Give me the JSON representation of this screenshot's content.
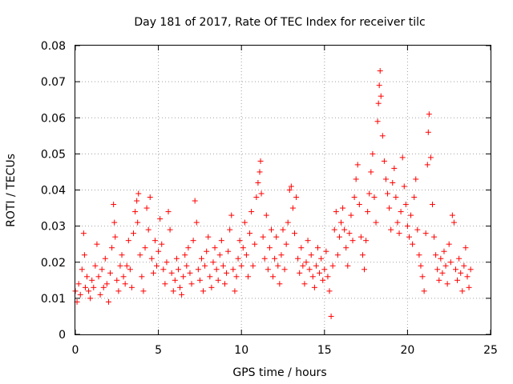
{
  "chart_data": {
    "type": "scatter",
    "title": "Day 181 of 2017, Rate Of TEC Index for receiver tilc",
    "xlabel": "GPS time / hours",
    "ylabel": "ROTI / TECUs",
    "xlim": [
      0,
      25
    ],
    "ylim": [
      0,
      0.08
    ],
    "x_ticks": [
      "0",
      "5",
      "10",
      "15",
      "20",
      "25"
    ],
    "y_ticks": [
      "0",
      "0.01",
      "0.02",
      "0.03",
      "0.04",
      "0.05",
      "0.06",
      "0.07",
      "0.08"
    ],
    "x_tick_values": [
      0,
      5,
      10,
      15,
      20,
      25
    ],
    "y_tick_values": [
      0,
      0.01,
      0.02,
      0.03,
      0.04,
      0.05,
      0.06,
      0.07,
      0.08
    ],
    "grid": true,
    "marker": "+",
    "color": "#ff0000",
    "series": [
      {
        "name": "ROTI",
        "points": [
          [
            0.0,
            0.012
          ],
          [
            0.1,
            0.009
          ],
          [
            0.2,
            0.014
          ],
          [
            0.3,
            0.011
          ],
          [
            0.4,
            0.018
          ],
          [
            0.5,
            0.028
          ],
          [
            0.55,
            0.022
          ],
          [
            0.6,
            0.013
          ],
          [
            0.7,
            0.016
          ],
          [
            0.8,
            0.012
          ],
          [
            0.9,
            0.01
          ],
          [
            1.0,
            0.015
          ],
          [
            1.1,
            0.013
          ],
          [
            1.2,
            0.019
          ],
          [
            1.3,
            0.025
          ],
          [
            1.4,
            0.016
          ],
          [
            1.5,
            0.011
          ],
          [
            1.6,
            0.018
          ],
          [
            1.7,
            0.013
          ],
          [
            1.8,
            0.021
          ],
          [
            1.9,
            0.014
          ],
          [
            2.0,
            0.009
          ],
          [
            2.1,
            0.017
          ],
          [
            2.2,
            0.024
          ],
          [
            2.3,
            0.036
          ],
          [
            2.35,
            0.031
          ],
          [
            2.4,
            0.027
          ],
          [
            2.5,
            0.015
          ],
          [
            2.6,
            0.012
          ],
          [
            2.7,
            0.019
          ],
          [
            2.8,
            0.022
          ],
          [
            2.9,
            0.016
          ],
          [
            3.0,
            0.014
          ],
          [
            3.1,
            0.019
          ],
          [
            3.2,
            0.026
          ],
          [
            3.3,
            0.018
          ],
          [
            3.4,
            0.013
          ],
          [
            3.5,
            0.028
          ],
          [
            3.6,
            0.034
          ],
          [
            3.7,
            0.037
          ],
          [
            3.75,
            0.031
          ],
          [
            3.8,
            0.039
          ],
          [
            3.9,
            0.022
          ],
          [
            4.0,
            0.016
          ],
          [
            4.1,
            0.012
          ],
          [
            4.2,
            0.024
          ],
          [
            4.3,
            0.035
          ],
          [
            4.4,
            0.029
          ],
          [
            4.5,
            0.038
          ],
          [
            4.6,
            0.021
          ],
          [
            4.7,
            0.017
          ],
          [
            4.8,
            0.026
          ],
          [
            4.9,
            0.019
          ],
          [
            5.0,
            0.023
          ],
          [
            5.1,
            0.032
          ],
          [
            5.2,
            0.025
          ],
          [
            5.3,
            0.018
          ],
          [
            5.4,
            0.014
          ],
          [
            5.5,
            0.02
          ],
          [
            5.6,
            0.034
          ],
          [
            5.7,
            0.029
          ],
          [
            5.8,
            0.017
          ],
          [
            5.9,
            0.012
          ],
          [
            6.0,
            0.015
          ],
          [
            6.1,
            0.021
          ],
          [
            6.2,
            0.018
          ],
          [
            6.3,
            0.013
          ],
          [
            6.4,
            0.011
          ],
          [
            6.5,
            0.016
          ],
          [
            6.6,
            0.022
          ],
          [
            6.7,
            0.019
          ],
          [
            6.8,
            0.024
          ],
          [
            6.9,
            0.017
          ],
          [
            7.0,
            0.014
          ],
          [
            7.1,
            0.026
          ],
          [
            7.2,
            0.037
          ],
          [
            7.3,
            0.031
          ],
          [
            7.4,
            0.018
          ],
          [
            7.5,
            0.015
          ],
          [
            7.6,
            0.021
          ],
          [
            7.7,
            0.012
          ],
          [
            7.8,
            0.019
          ],
          [
            7.9,
            0.023
          ],
          [
            8.0,
            0.027
          ],
          [
            8.1,
            0.016
          ],
          [
            8.2,
            0.013
          ],
          [
            8.3,
            0.02
          ],
          [
            8.4,
            0.024
          ],
          [
            8.5,
            0.018
          ],
          [
            8.6,
            0.015
          ],
          [
            8.7,
            0.022
          ],
          [
            8.8,
            0.026
          ],
          [
            8.9,
            0.019
          ],
          [
            9.0,
            0.014
          ],
          [
            9.1,
            0.017
          ],
          [
            9.2,
            0.023
          ],
          [
            9.3,
            0.029
          ],
          [
            9.4,
            0.033
          ],
          [
            9.5,
            0.018
          ],
          [
            9.6,
            0.012
          ],
          [
            9.7,
            0.016
          ],
          [
            9.8,
            0.021
          ],
          [
            9.9,
            0.026
          ],
          [
            10.0,
            0.019
          ],
          [
            10.1,
            0.024
          ],
          [
            10.2,
            0.031
          ],
          [
            10.3,
            0.022
          ],
          [
            10.4,
            0.016
          ],
          [
            10.5,
            0.028
          ],
          [
            10.6,
            0.034
          ],
          [
            10.7,
            0.019
          ],
          [
            10.8,
            0.025
          ],
          [
            10.9,
            0.038
          ],
          [
            11.0,
            0.042
          ],
          [
            11.1,
            0.045
          ],
          [
            11.15,
            0.048
          ],
          [
            11.2,
            0.039
          ],
          [
            11.3,
            0.027
          ],
          [
            11.4,
            0.021
          ],
          [
            11.5,
            0.033
          ],
          [
            11.6,
            0.018
          ],
          [
            11.7,
            0.024
          ],
          [
            11.8,
            0.029
          ],
          [
            11.9,
            0.016
          ],
          [
            12.0,
            0.021
          ],
          [
            12.1,
            0.027
          ],
          [
            12.2,
            0.019
          ],
          [
            12.3,
            0.014
          ],
          [
            12.4,
            0.022
          ],
          [
            12.5,
            0.029
          ],
          [
            12.6,
            0.018
          ],
          [
            12.7,
            0.025
          ],
          [
            12.8,
            0.031
          ],
          [
            12.9,
            0.04
          ],
          [
            13.0,
            0.041
          ],
          [
            13.1,
            0.035
          ],
          [
            13.2,
            0.028
          ],
          [
            13.3,
            0.038
          ],
          [
            13.4,
            0.021
          ],
          [
            13.5,
            0.017
          ],
          [
            13.6,
            0.024
          ],
          [
            13.7,
            0.019
          ],
          [
            13.8,
            0.014
          ],
          [
            13.9,
            0.02
          ],
          [
            14.0,
            0.026
          ],
          [
            14.1,
            0.018
          ],
          [
            14.2,
            0.022
          ],
          [
            14.3,
            0.016
          ],
          [
            14.4,
            0.013
          ],
          [
            14.5,
            0.019
          ],
          [
            14.6,
            0.024
          ],
          [
            14.7,
            0.017
          ],
          [
            14.8,
            0.021
          ],
          [
            14.9,
            0.015
          ],
          [
            15.0,
            0.018
          ],
          [
            15.1,
            0.023
          ],
          [
            15.2,
            0.016
          ],
          [
            15.3,
            0.012
          ],
          [
            15.4,
            0.005
          ],
          [
            15.5,
            0.019
          ],
          [
            15.6,
            0.029
          ],
          [
            15.7,
            0.034
          ],
          [
            15.8,
            0.022
          ],
          [
            15.9,
            0.027
          ],
          [
            16.0,
            0.031
          ],
          [
            16.1,
            0.035
          ],
          [
            16.2,
            0.029
          ],
          [
            16.3,
            0.024
          ],
          [
            16.4,
            0.019
          ],
          [
            16.5,
            0.028
          ],
          [
            16.6,
            0.033
          ],
          [
            16.7,
            0.026
          ],
          [
            16.8,
            0.038
          ],
          [
            16.9,
            0.043
          ],
          [
            17.0,
            0.047
          ],
          [
            17.1,
            0.036
          ],
          [
            17.2,
            0.027
          ],
          [
            17.3,
            0.022
          ],
          [
            17.4,
            0.018
          ],
          [
            17.5,
            0.026
          ],
          [
            17.6,
            0.034
          ],
          [
            17.7,
            0.039
          ],
          [
            17.8,
            0.045
          ],
          [
            17.9,
            0.05
          ],
          [
            18.0,
            0.038
          ],
          [
            18.1,
            0.031
          ],
          [
            18.2,
            0.059
          ],
          [
            18.25,
            0.064
          ],
          [
            18.3,
            0.069
          ],
          [
            18.35,
            0.073
          ],
          [
            18.4,
            0.066
          ],
          [
            18.5,
            0.055
          ],
          [
            18.6,
            0.048
          ],
          [
            18.7,
            0.043
          ],
          [
            18.8,
            0.039
          ],
          [
            18.9,
            0.035
          ],
          [
            19.0,
            0.029
          ],
          [
            19.1,
            0.042
          ],
          [
            19.2,
            0.046
          ],
          [
            19.3,
            0.038
          ],
          [
            19.4,
            0.031
          ],
          [
            19.5,
            0.028
          ],
          [
            19.6,
            0.034
          ],
          [
            19.7,
            0.049
          ],
          [
            19.8,
            0.041
          ],
          [
            19.9,
            0.036
          ],
          [
            20.0,
            0.03
          ],
          [
            20.1,
            0.027
          ],
          [
            20.2,
            0.033
          ],
          [
            20.3,
            0.025
          ],
          [
            20.4,
            0.038
          ],
          [
            20.5,
            0.043
          ],
          [
            20.6,
            0.029
          ],
          [
            20.7,
            0.022
          ],
          [
            20.8,
            0.019
          ],
          [
            20.9,
            0.016
          ],
          [
            21.0,
            0.012
          ],
          [
            21.1,
            0.028
          ],
          [
            21.2,
            0.047
          ],
          [
            21.25,
            0.056
          ],
          [
            21.3,
            0.061
          ],
          [
            21.4,
            0.049
          ],
          [
            21.5,
            0.036
          ],
          [
            21.6,
            0.027
          ],
          [
            21.7,
            0.022
          ],
          [
            21.8,
            0.018
          ],
          [
            21.9,
            0.015
          ],
          [
            22.0,
            0.021
          ],
          [
            22.1,
            0.017
          ],
          [
            22.2,
            0.023
          ],
          [
            22.3,
            0.019
          ],
          [
            22.4,
            0.014
          ],
          [
            22.5,
            0.025
          ],
          [
            22.6,
            0.02
          ],
          [
            22.7,
            0.033
          ],
          [
            22.8,
            0.031
          ],
          [
            22.9,
            0.018
          ],
          [
            23.0,
            0.015
          ],
          [
            23.1,
            0.021
          ],
          [
            23.2,
            0.017
          ],
          [
            23.3,
            0.012
          ],
          [
            23.4,
            0.019
          ],
          [
            23.5,
            0.024
          ],
          [
            23.6,
            0.016
          ],
          [
            23.7,
            0.013
          ],
          [
            23.8,
            0.018
          ]
        ]
      }
    ]
  }
}
